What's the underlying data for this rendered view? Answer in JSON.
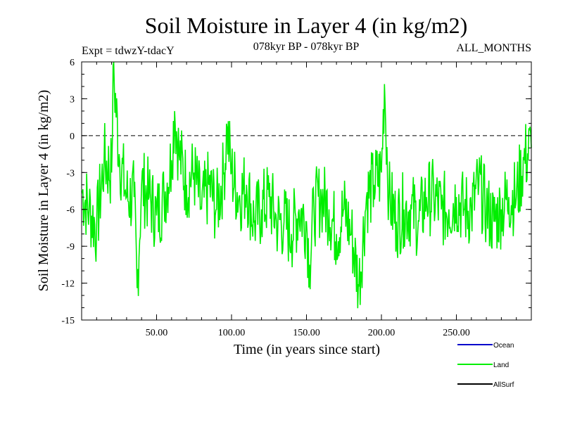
{
  "header": {
    "title": "Soil Moisture in Layer 4 (in kg/m2)",
    "expt": "Expt = tdwzY-tdacY",
    "period": "078kyr BP - 078kyr BP",
    "months": "ALL_MONTHS"
  },
  "colors": {
    "land": "#00ee00",
    "ocean": "#0000cc",
    "allsurf": "#000000",
    "axis": "#000000"
  },
  "chart_data": {
    "type": "line",
    "title": "Soil Moisture in Layer 4 (in kg/m2)",
    "xlabel": "Time (in years since start)",
    "ylabel": "Soil Moisture in Layer 4 (in kg/m2)",
    "xlim": [
      0,
      300
    ],
    "ylim": [
      -15,
      6
    ],
    "x_ticks": [
      50,
      100,
      150,
      200,
      250
    ],
    "x_tick_labels": [
      "50.00",
      "100.00",
      "150.00",
      "200.00",
      "250.00"
    ],
    "y_ticks": [
      6,
      3,
      0,
      -3,
      -6,
      -9,
      -12,
      -15
    ],
    "y_tick_labels": [
      "6",
      "3",
      "0",
      "-3",
      "-6",
      "-9",
      "-12",
      "-15"
    ],
    "reference_line": 0,
    "legend_position": "bottom-right",
    "series": [
      {
        "name": "Ocean",
        "values": []
      },
      {
        "name": "Land",
        "x": [
          0,
          5,
          10,
          15,
          20,
          21,
          25,
          30,
          35,
          37,
          40,
          45,
          50,
          55,
          60,
          62,
          65,
          70,
          75,
          80,
          85,
          90,
          95,
          97,
          100,
          105,
          110,
          115,
          120,
          125,
          130,
          135,
          140,
          145,
          150,
          152,
          155,
          160,
          165,
          170,
          175,
          180,
          185,
          190,
          195,
          200,
          202,
          205,
          210,
          215,
          220,
          225,
          230,
          235,
          240,
          245,
          250,
          255,
          260,
          265,
          270,
          275,
          280,
          285,
          290,
          295,
          300
        ],
        "values": [
          -4.5,
          -6,
          -7.5,
          -2,
          -3,
          5.7,
          -1.5,
          -5,
          -5,
          -12.4,
          -4,
          -5,
          -6.5,
          -5,
          -2,
          2,
          -1.5,
          -4,
          -3,
          -6,
          -4,
          -6,
          -3,
          0.7,
          -3,
          -5,
          -4,
          -7,
          -6,
          -5,
          -7,
          -7,
          -8,
          -6,
          -7,
          -10.5,
          -6,
          -5,
          -6,
          -8,
          -6,
          -8,
          -12.2,
          -5,
          -4,
          -3,
          4.2,
          -5,
          -7,
          -6,
          -6,
          -7,
          -5,
          -5,
          -6,
          -6,
          -5,
          -6,
          -6,
          -4,
          -6,
          -7,
          -6,
          -5,
          -5,
          -2,
          -1
        ]
      },
      {
        "name": "AllSurf",
        "values": []
      }
    ]
  }
}
